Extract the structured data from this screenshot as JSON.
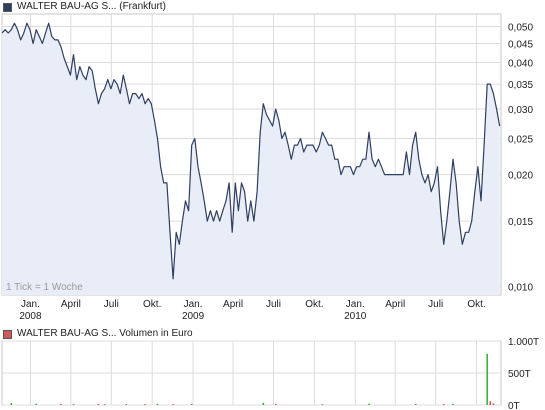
{
  "price_legend": {
    "label": "WALTER BAU-AG S... (Frankfurt)",
    "color": "#2f3f60"
  },
  "volume_legend": {
    "label": "WALTER BAU-AG S... Volumen in Euro",
    "color": "#d05a5a"
  },
  "tick_note": "1 Tick = 1 Woche",
  "chart_data": [
    {
      "type": "line",
      "title": "WALTER BAU-AG S... (Frankfurt)",
      "y_scale": "log",
      "ylim": [
        0.0095,
        0.054
      ],
      "yticks": [
        {
          "value": 0.05,
          "label": "0,050"
        },
        {
          "value": 0.045,
          "label": "0,045"
        },
        {
          "value": 0.04,
          "label": "0,040"
        },
        {
          "value": 0.035,
          "label": "0,035"
        },
        {
          "value": 0.03,
          "label": "0,030"
        },
        {
          "value": 0.025,
          "label": "0,025"
        },
        {
          "value": 0.02,
          "label": "0,020"
        },
        {
          "value": 0.015,
          "label": "0,015"
        },
        {
          "value": 0.01,
          "label": "0,010"
        }
      ],
      "x_range": [
        "2007-10-29",
        "2010-11-25"
      ],
      "xticks": [
        {
          "date": "2008-01-01",
          "label": "Jan.",
          "year": "2008"
        },
        {
          "date": "2008-04-01",
          "label": "April"
        },
        {
          "date": "2008-07-01",
          "label": "Juli"
        },
        {
          "date": "2008-10-01",
          "label": "Okt."
        },
        {
          "date": "2009-01-01",
          "label": "Jan.",
          "year": "2009"
        },
        {
          "date": "2009-04-01",
          "label": "April"
        },
        {
          "date": "2009-07-01",
          "label": "Juli"
        },
        {
          "date": "2009-10-01",
          "label": "Okt."
        },
        {
          "date": "2010-01-01",
          "label": "Jan.",
          "year": "2010"
        },
        {
          "date": "2010-04-01",
          "label": "April"
        },
        {
          "date": "2010-07-01",
          "label": "Juli"
        },
        {
          "date": "2010-10-01",
          "label": "Okt."
        }
      ],
      "grid": true,
      "series": [
        {
          "name": "WALTER BAU-AG S... (Frankfurt)",
          "color": "#2f3f60",
          "points": [
            [
              "2007-10-29",
              0.048
            ],
            [
              "2007-11-05",
              0.049
            ],
            [
              "2007-11-12",
              0.048
            ],
            [
              "2007-11-19",
              0.049
            ],
            [
              "2007-11-26",
              0.051
            ],
            [
              "2007-12-03",
              0.049
            ],
            [
              "2007-12-10",
              0.046
            ],
            [
              "2007-12-17",
              0.048
            ],
            [
              "2007-12-24",
              0.051
            ],
            [
              "2007-12-31",
              0.049
            ],
            [
              "2008-01-07",
              0.045
            ],
            [
              "2008-01-14",
              0.049
            ],
            [
              "2008-01-21",
              0.047
            ],
            [
              "2008-01-28",
              0.045
            ],
            [
              "2008-02-04",
              0.048
            ],
            [
              "2008-02-11",
              0.051
            ],
            [
              "2008-02-18",
              0.047
            ],
            [
              "2008-02-25",
              0.046
            ],
            [
              "2008-03-03",
              0.046
            ],
            [
              "2008-03-10",
              0.044
            ],
            [
              "2008-03-17",
              0.041
            ],
            [
              "2008-03-24",
              0.039
            ],
            [
              "2008-03-31",
              0.037
            ],
            [
              "2008-04-07",
              0.042
            ],
            [
              "2008-04-14",
              0.036
            ],
            [
              "2008-04-21",
              0.039
            ],
            [
              "2008-04-28",
              0.037
            ],
            [
              "2008-05-05",
              0.036
            ],
            [
              "2008-05-12",
              0.039
            ],
            [
              "2008-05-19",
              0.038
            ],
            [
              "2008-05-26",
              0.034
            ],
            [
              "2008-06-02",
              0.031
            ],
            [
              "2008-06-09",
              0.033
            ],
            [
              "2008-06-16",
              0.034
            ],
            [
              "2008-06-23",
              0.036
            ],
            [
              "2008-06-30",
              0.034
            ],
            [
              "2008-07-07",
              0.036
            ],
            [
              "2008-07-14",
              0.035
            ],
            [
              "2008-07-21",
              0.033
            ],
            [
              "2008-07-28",
              0.037
            ],
            [
              "2008-08-04",
              0.034
            ],
            [
              "2008-08-11",
              0.031
            ],
            [
              "2008-08-18",
              0.033
            ],
            [
              "2008-08-25",
              0.033
            ],
            [
              "2008-09-01",
              0.032
            ],
            [
              "2008-09-08",
              0.033
            ],
            [
              "2008-09-15",
              0.031
            ],
            [
              "2008-09-22",
              0.032
            ],
            [
              "2008-09-29",
              0.031
            ],
            [
              "2008-10-06",
              0.028
            ],
            [
              "2008-10-13",
              0.025
            ],
            [
              "2008-10-20",
              0.021
            ],
            [
              "2008-10-27",
              0.019
            ],
            [
              "2008-11-03",
              0.019
            ],
            [
              "2008-11-10",
              0.014
            ],
            [
              "2008-11-17",
              0.0105
            ],
            [
              "2008-11-24",
              0.014
            ],
            [
              "2008-12-01",
              0.013
            ],
            [
              "2008-12-08",
              0.015
            ],
            [
              "2008-12-15",
              0.017
            ],
            [
              "2008-12-22",
              0.016
            ],
            [
              "2008-12-29",
              0.024
            ],
            [
              "2009-01-05",
              0.025
            ],
            [
              "2009-01-12",
              0.021
            ],
            [
              "2009-01-19",
              0.019
            ],
            [
              "2009-01-26",
              0.017
            ],
            [
              "2009-02-02",
              0.015
            ],
            [
              "2009-02-09",
              0.016
            ],
            [
              "2009-02-16",
              0.015
            ],
            [
              "2009-02-23",
              0.016
            ],
            [
              "2009-03-02",
              0.015
            ],
            [
              "2009-03-09",
              0.016
            ],
            [
              "2009-03-16",
              0.017
            ],
            [
              "2009-03-23",
              0.019
            ],
            [
              "2009-03-30",
              0.014
            ],
            [
              "2009-04-06",
              0.019
            ],
            [
              "2009-04-13",
              0.016
            ],
            [
              "2009-04-20",
              0.019
            ],
            [
              "2009-04-27",
              0.018
            ],
            [
              "2009-05-04",
              0.015
            ],
            [
              "2009-05-11",
              0.017
            ],
            [
              "2009-05-18",
              0.015
            ],
            [
              "2009-05-25",
              0.018
            ],
            [
              "2009-06-01",
              0.026
            ],
            [
              "2009-06-08",
              0.031
            ],
            [
              "2009-06-15",
              0.029
            ],
            [
              "2009-06-22",
              0.028
            ],
            [
              "2009-06-29",
              0.027
            ],
            [
              "2009-07-06",
              0.03
            ],
            [
              "2009-07-13",
              0.028
            ],
            [
              "2009-07-20",
              0.025
            ],
            [
              "2009-07-27",
              0.026
            ],
            [
              "2009-08-03",
              0.024
            ],
            [
              "2009-08-10",
              0.022
            ],
            [
              "2009-08-17",
              0.024
            ],
            [
              "2009-08-24",
              0.024
            ],
            [
              "2009-08-31",
              0.025
            ],
            [
              "2009-09-07",
              0.023
            ],
            [
              "2009-09-14",
              0.024
            ],
            [
              "2009-09-21",
              0.024
            ],
            [
              "2009-09-28",
              0.024
            ],
            [
              "2009-10-05",
              0.023
            ],
            [
              "2009-10-12",
              0.024
            ],
            [
              "2009-10-19",
              0.026
            ],
            [
              "2009-10-26",
              0.025
            ],
            [
              "2009-11-02",
              0.024
            ],
            [
              "2009-11-09",
              0.024
            ],
            [
              "2009-11-16",
              0.022
            ],
            [
              "2009-11-23",
              0.022
            ],
            [
              "2009-11-30",
              0.02
            ],
            [
              "2009-12-07",
              0.021
            ],
            [
              "2009-12-14",
              0.021
            ],
            [
              "2009-12-21",
              0.021
            ],
            [
              "2009-12-28",
              0.02
            ],
            [
              "2010-01-04",
              0.021
            ],
            [
              "2010-01-11",
              0.021
            ],
            [
              "2010-01-18",
              0.022
            ],
            [
              "2010-01-25",
              0.022
            ],
            [
              "2010-02-01",
              0.026
            ],
            [
              "2010-02-08",
              0.022
            ],
            [
              "2010-02-15",
              0.021
            ],
            [
              "2010-02-22",
              0.022
            ],
            [
              "2010-03-01",
              0.021
            ],
            [
              "2010-03-08",
              0.02
            ],
            [
              "2010-03-15",
              0.02
            ],
            [
              "2010-03-22",
              0.02
            ],
            [
              "2010-03-29",
              0.02
            ],
            [
              "2010-04-05",
              0.02
            ],
            [
              "2010-04-12",
              0.02
            ],
            [
              "2010-04-19",
              0.02
            ],
            [
              "2010-04-26",
              0.023
            ],
            [
              "2010-05-03",
              0.02
            ],
            [
              "2010-05-10",
              0.024
            ],
            [
              "2010-05-17",
              0.026
            ],
            [
              "2010-05-24",
              0.022
            ],
            [
              "2010-05-31",
              0.02
            ],
            [
              "2010-06-07",
              0.019
            ],
            [
              "2010-06-14",
              0.02
            ],
            [
              "2010-06-21",
              0.018
            ],
            [
              "2010-06-28",
              0.019
            ],
            [
              "2010-07-05",
              0.021
            ],
            [
              "2010-07-12",
              0.016
            ],
            [
              "2010-07-19",
              0.013
            ],
            [
              "2010-07-26",
              0.015
            ],
            [
              "2010-08-02",
              0.018
            ],
            [
              "2010-08-09",
              0.022
            ],
            [
              "2010-08-16",
              0.019
            ],
            [
              "2010-08-23",
              0.015
            ],
            [
              "2010-08-30",
              0.013
            ],
            [
              "2010-09-06",
              0.014
            ],
            [
              "2010-09-13",
              0.014
            ],
            [
              "2010-09-20",
              0.015
            ],
            [
              "2010-09-27",
              0.018
            ],
            [
              "2010-10-04",
              0.021
            ],
            [
              "2010-10-11",
              0.017
            ],
            [
              "2010-10-18",
              0.024
            ],
            [
              "2010-10-25",
              0.035
            ],
            [
              "2010-11-01",
              0.035
            ],
            [
              "2010-11-08",
              0.033
            ],
            [
              "2010-11-15",
              0.03
            ],
            [
              "2010-11-22",
              0.027
            ]
          ]
        }
      ]
    },
    {
      "type": "bar",
      "title": "WALTER BAU-AG S... Volumen in Euro",
      "ylim": [
        0,
        1000
      ],
      "yticks": [
        {
          "value": 1000,
          "label": "1.000T"
        },
        {
          "value": 500,
          "label": "500T"
        },
        {
          "value": 0,
          "label": "0T"
        }
      ],
      "grid": true,
      "series": [
        {
          "name": "WALTER BAU-AG S... Volumen in Euro",
          "bars": [
            {
              "date": "2007-11-19",
              "value": 30,
              "color": "#3cb43c"
            },
            {
              "date": "2008-01-14",
              "value": 20,
              "color": "#3cb43c"
            },
            {
              "date": "2008-03-10",
              "value": 15,
              "color": "#d05a5a"
            },
            {
              "date": "2008-04-07",
              "value": 12,
              "color": "#3cb43c"
            },
            {
              "date": "2008-06-02",
              "value": 15,
              "color": "#d05a5a"
            },
            {
              "date": "2008-06-16",
              "value": 12,
              "color": "#d05a5a"
            },
            {
              "date": "2008-08-04",
              "value": 15,
              "color": "#3cb43c"
            },
            {
              "date": "2008-09-15",
              "value": 12,
              "color": "#d05a5a"
            },
            {
              "date": "2008-10-13",
              "value": 18,
              "color": "#3cb43c"
            },
            {
              "date": "2008-11-17",
              "value": 12,
              "color": "#d05a5a"
            },
            {
              "date": "2008-12-29",
              "value": 15,
              "color": "#3cb43c"
            },
            {
              "date": "2009-06-08",
              "value": 35,
              "color": "#3cb43c"
            },
            {
              "date": "2009-07-06",
              "value": 15,
              "color": "#d05a5a"
            },
            {
              "date": "2009-10-19",
              "value": 12,
              "color": "#3cb43c"
            },
            {
              "date": "2010-02-01",
              "value": 20,
              "color": "#3cb43c"
            },
            {
              "date": "2010-05-17",
              "value": 15,
              "color": "#3cb43c"
            },
            {
              "date": "2010-07-19",
              "value": 12,
              "color": "#d05a5a"
            },
            {
              "date": "2010-08-09",
              "value": 18,
              "color": "#3cb43c"
            },
            {
              "date": "2010-10-25",
              "value": 800,
              "color": "#3cb43c"
            },
            {
              "date": "2010-11-01",
              "value": 60,
              "color": "#d05a5a"
            },
            {
              "date": "2010-11-08",
              "value": 25,
              "color": "#d05a5a"
            }
          ]
        }
      ]
    }
  ]
}
